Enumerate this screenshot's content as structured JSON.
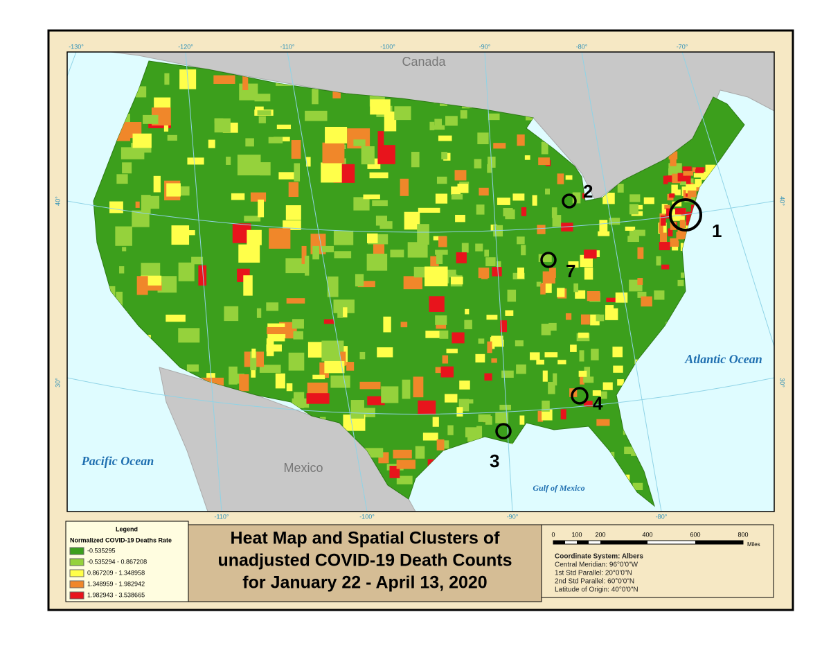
{
  "map": {
    "places": [
      "Canada",
      "Mexico",
      "Pacific Ocean",
      "Atlantic Ocean",
      "Gulf of Mexico"
    ],
    "graticule_top": [
      "-130°",
      "-120°",
      "-110°",
      "-100°",
      "-90°",
      "-80°",
      "-70°"
    ],
    "graticule_bottom": [
      "-110°",
      "-100°",
      "-90°",
      "-80°"
    ],
    "graticule_left": [
      "40°",
      "30°"
    ],
    "graticule_right": [
      "40°",
      "30°"
    ],
    "clusters": [
      "1",
      "2",
      "7",
      "4",
      "3"
    ]
  },
  "legend": {
    "title": "Legend",
    "subtitle": "Normalized COVID-19 Deaths Rate",
    "classes": [
      {
        "label": "-0.535295",
        "color": "#3c9f1c"
      },
      {
        "label": "-0.535294 - 0.867208",
        "color": "#95d23c"
      },
      {
        "label": "0.867209 - 1.348958",
        "color": "#ffff4a"
      },
      {
        "label": "1.348959 - 1.982942",
        "color": "#f0872a"
      },
      {
        "label": "1.982943 - 3.538665",
        "color": "#e8141c"
      }
    ]
  },
  "title": [
    "Heat Map and Spatial Clusters of",
    "unadjusted COVID-19 Death Counts",
    "for January 22 - April 13, 2020"
  ],
  "scale": {
    "ticks": [
      "0",
      "100",
      "200",
      "400",
      "600",
      "800"
    ],
    "unit": "Miles",
    "coordinate_system": [
      "Coordinate System: Albers",
      "Central Meridian: 96°0'0\"W",
      "1st Std Parallel: 20°0'0\"N",
      "2nd Std Parallel: 60°0'0\"N",
      "Latitude of Origin: 40°0'0\"N"
    ]
  }
}
